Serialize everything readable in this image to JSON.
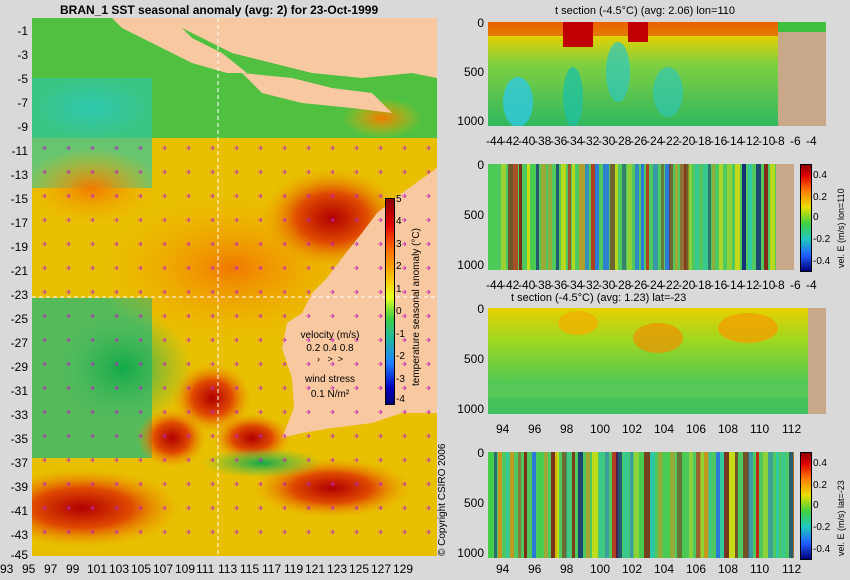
{
  "map": {
    "title": "BRAN_1 SST seasonal anomaly (avg: 2) for 23-Oct-1999",
    "y_ticks": [
      "-1",
      "-3",
      "-5",
      "-7",
      "-9",
      "-11",
      "-13",
      "-15",
      "-17",
      "-19",
      "-21",
      "-23",
      "-25",
      "-27",
      "-29",
      "-31",
      "-33",
      "-35",
      "-37",
      "-39",
      "-41",
      "-43",
      "-45"
    ],
    "x_ticks": [
      "93",
      "95",
      "97",
      "99",
      "101",
      "103",
      "105",
      "107",
      "109",
      "111",
      "113",
      "115",
      "117",
      "119",
      "121",
      "123",
      "125",
      "127",
      "129"
    ],
    "colorbar": {
      "ticks": [
        "5",
        "4",
        "3",
        "2",
        "1",
        "0",
        "-1",
        "-2",
        "-3",
        "-4"
      ],
      "label": "temperature seasonal anomaly (°C)"
    },
    "velocity_legend": {
      "title": "velocity (m/s)",
      "values": "0.2 0.4 0.8",
      "wind_title": "wind stress",
      "wind_value": "0.1 N/m²"
    },
    "copyright": "© Copyright CSIRO 2006"
  },
  "panels": [
    {
      "title": "t section (-4.5°C) (avg: 2.06) lon=110",
      "y_ticks": [
        "0",
        "500",
        "1000"
      ],
      "x_ticks": [
        "-44",
        "-42",
        "-40",
        "-38",
        "-36",
        "-34",
        "-32",
        "-30",
        "-28",
        "-26",
        "-24",
        "-22",
        "-20",
        "-18",
        "-16",
        "-14",
        "-12",
        "-10",
        "-8",
        "-6",
        "-4"
      ]
    },
    {
      "title": "",
      "y_ticks": [
        "0",
        "500",
        "1000"
      ],
      "x_ticks": [
        "-44",
        "-42",
        "-40",
        "-38",
        "-36",
        "-34",
        "-32",
        "-30",
        "-28",
        "-26",
        "-24",
        "-22",
        "-20",
        "-18",
        "-16",
        "-14",
        "-12",
        "-10",
        "-8",
        "-6",
        "-4"
      ],
      "colorbar_ticks": [
        "0.4",
        "0.2",
        "0",
        "-0.2",
        "-0.4"
      ],
      "colorbar_label": "vel. E (m/s) lon=110"
    },
    {
      "title": "t section (-4.5°C) (avg: 1.23) lat=-23",
      "y_ticks": [
        "0",
        "500",
        "1000"
      ],
      "x_ticks": [
        "94",
        "96",
        "98",
        "100",
        "102",
        "104",
        "106",
        "108",
        "110",
        "112"
      ]
    },
    {
      "title": "",
      "y_ticks": [
        "0",
        "500",
        "1000"
      ],
      "x_ticks": [
        "94",
        "96",
        "98",
        "100",
        "102",
        "104",
        "106",
        "108",
        "110",
        "112"
      ],
      "colorbar_ticks": [
        "0.4",
        "0.2",
        "0",
        "-0.2",
        "-0.4"
      ],
      "colorbar_label": "vel. E (m/s) lat=-23"
    }
  ],
  "chart_data": [
    {
      "type": "heatmap",
      "title": "BRAN_1 SST seasonal anomaly (avg: 2) for 23-Oct-1999",
      "x_range": [
        93,
        130
      ],
      "y_range": [
        -45,
        0
      ],
      "colorbar_range": [
        -4,
        5
      ],
      "colorbar_label": "temperature seasonal anomaly (°C)"
    },
    {
      "type": "heatmap",
      "title": "t section (-4.5°C) (avg: 2.06) lon=110",
      "x_range": [
        -45,
        -3
      ],
      "y_range": [
        0,
        1000
      ]
    },
    {
      "type": "heatmap",
      "x_range": [
        -45,
        -3
      ],
      "y_range": [
        0,
        1000
      ],
      "colorbar_range": [
        -0.4,
        0.4
      ],
      "colorbar_label": "vel. E (m/s) lon=110"
    },
    {
      "type": "heatmap",
      "title": "t section (-4.5°C) (avg: 1.23) lat=-23",
      "x_range": [
        93,
        114
      ],
      "y_range": [
        0,
        1000
      ]
    },
    {
      "type": "heatmap",
      "x_range": [
        93,
        114
      ],
      "y_range": [
        0,
        1000
      ],
      "colorbar_range": [
        -0.4,
        0.4
      ],
      "colorbar_label": "vel. E (m/s) lat=-23"
    }
  ]
}
